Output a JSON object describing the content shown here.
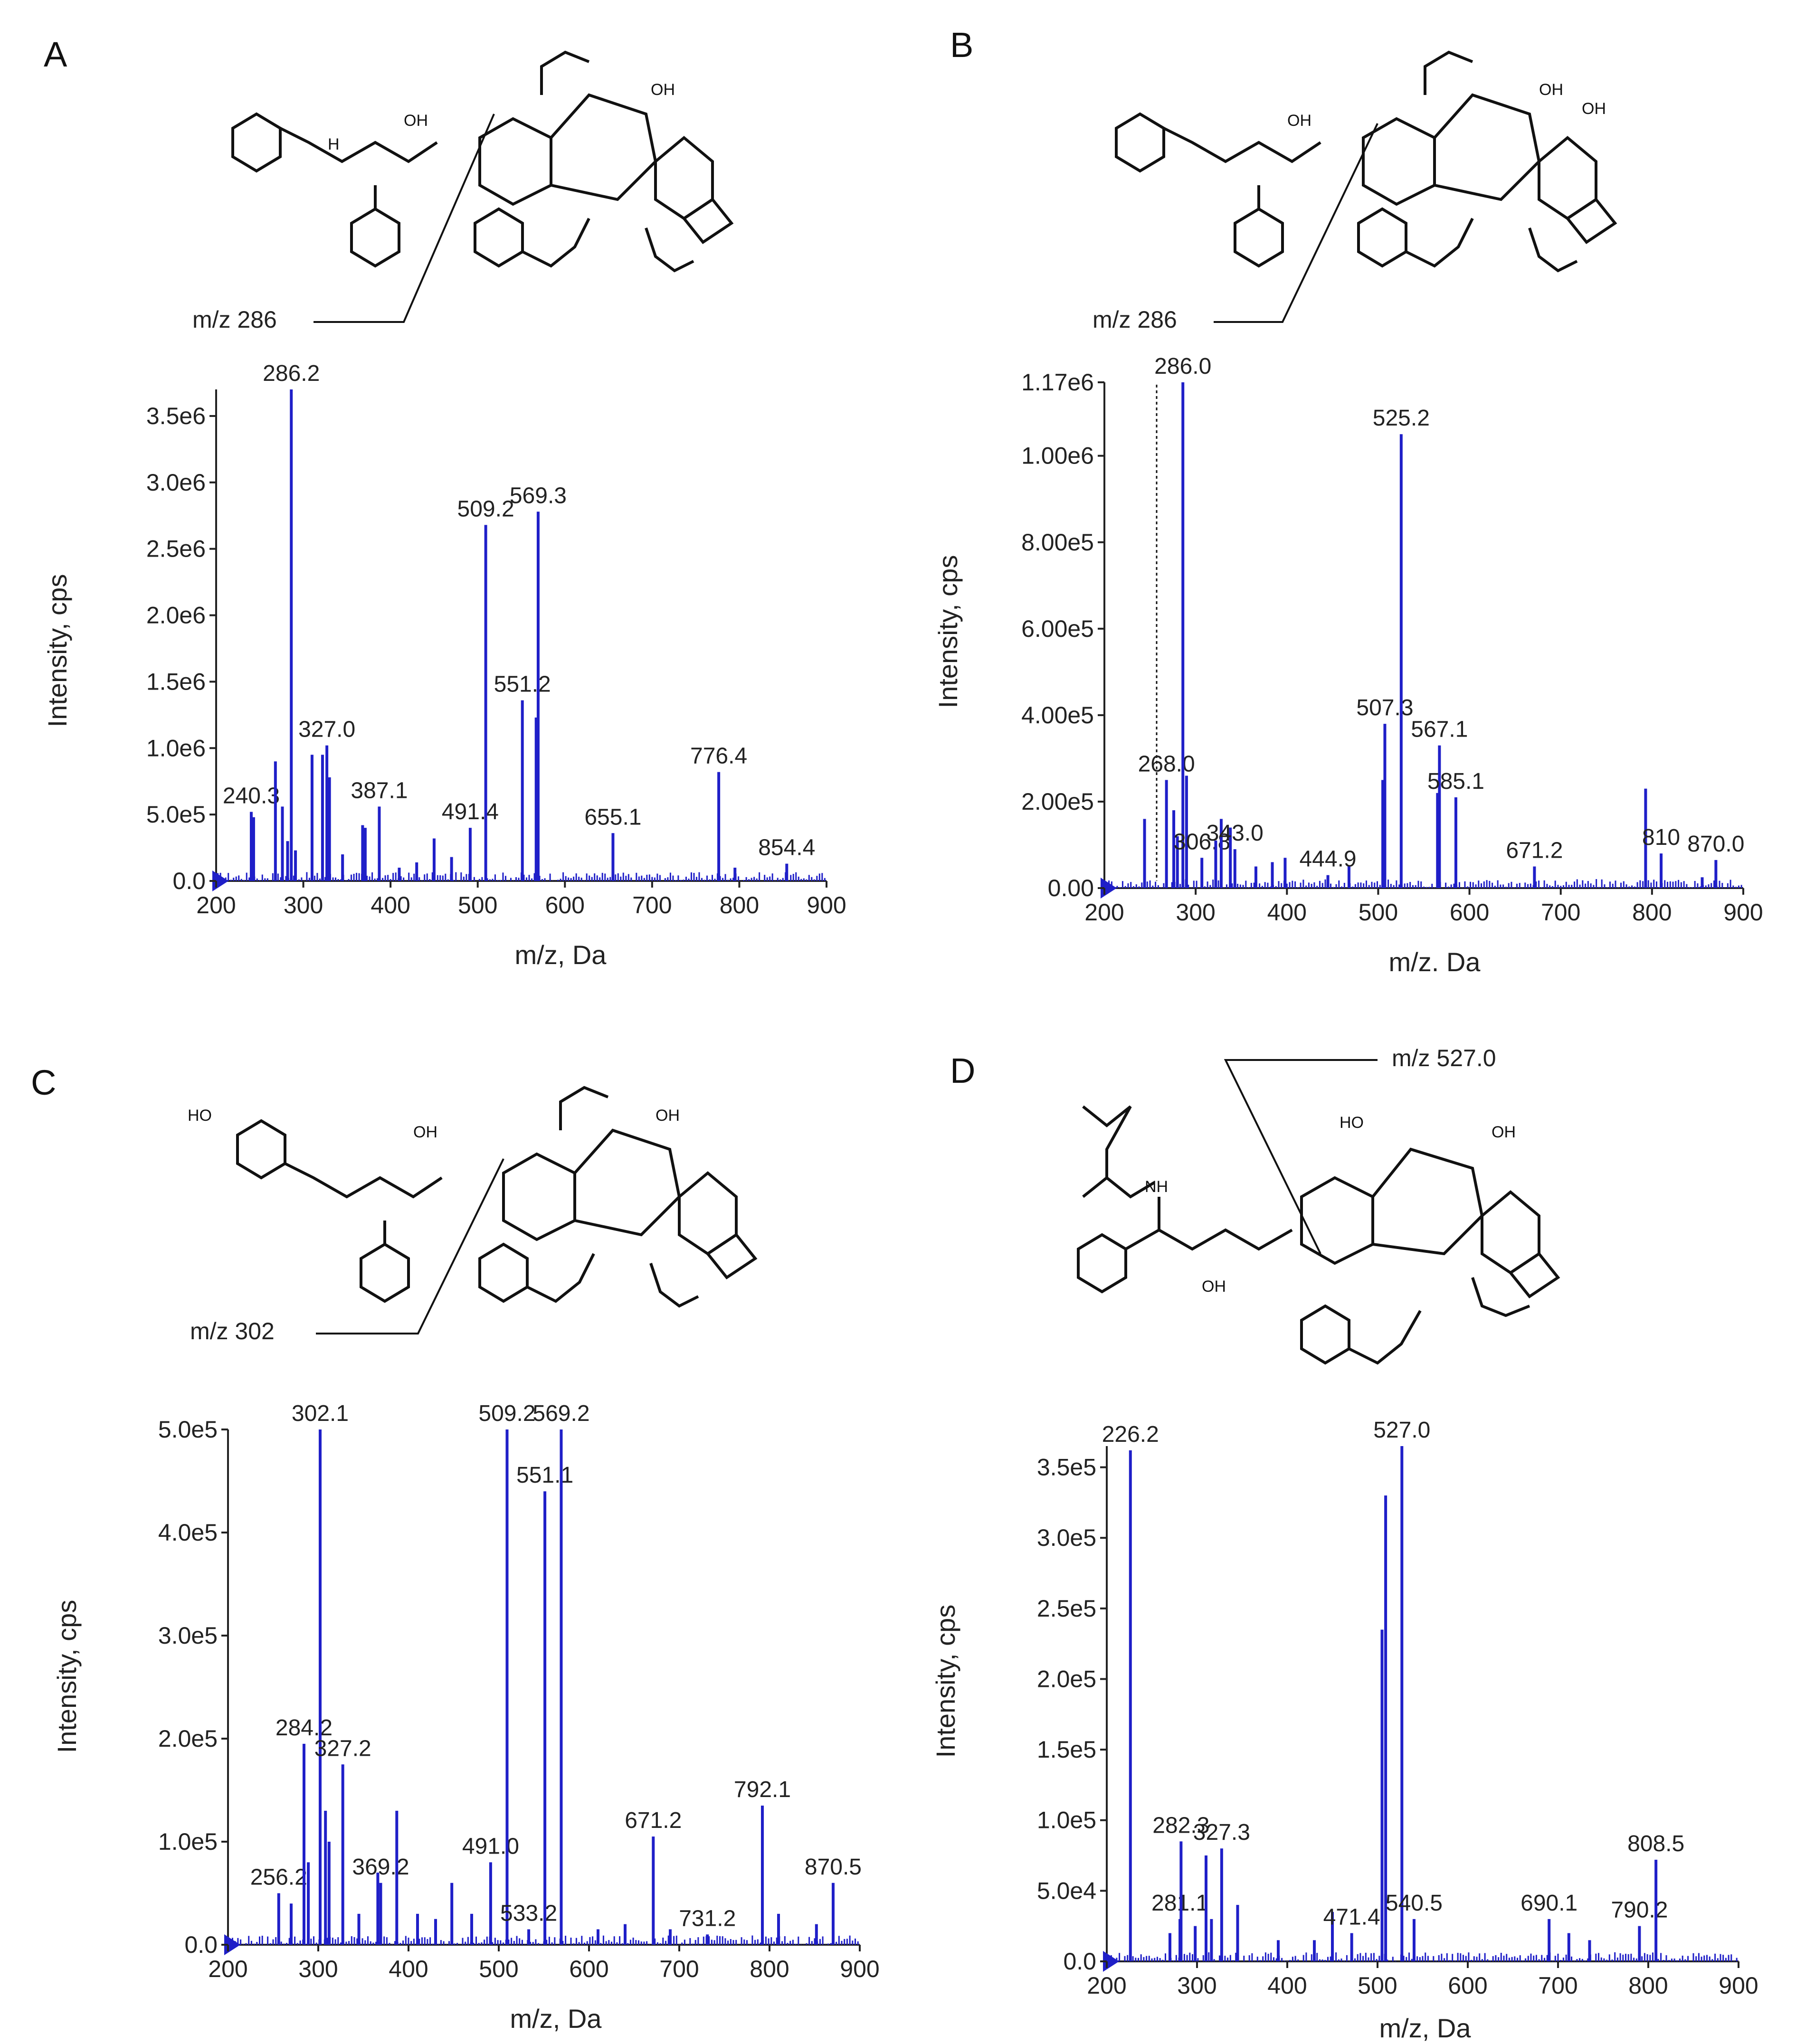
{
  "chart_data": [
    {
      "panel": "A",
      "type": "bar",
      "xlabel": "m/z, Da",
      "ylabel": "Intensity, cps",
      "xlim": [
        200,
        900
      ],
      "xticks": [
        200,
        300,
        400,
        500,
        600,
        700,
        800,
        900
      ],
      "xtick_labels": [
        "200",
        "300",
        "400",
        "500",
        "600",
        "700",
        "800",
        "900"
      ],
      "ylim": [
        0,
        3700000
      ],
      "yticks": [
        0,
        500000,
        1000000,
        1500000,
        2000000,
        2500000,
        3000000,
        3500000
      ],
      "ytick_labels": [
        "0.0",
        "5.0e5",
        "1.0e6",
        "1.5e6",
        "2.0e6",
        "2.5e6",
        "3.0e6",
        "3.5e6"
      ],
      "fragment_label": "m/z 286",
      "peaks": [
        {
          "mz": 240.3,
          "value": 520000,
          "label": "240.3"
        },
        {
          "mz": 243,
          "value": 480000
        },
        {
          "mz": 268,
          "value": 900000
        },
        {
          "mz": 276,
          "value": 560000
        },
        {
          "mz": 282,
          "value": 300000
        },
        {
          "mz": 286.2,
          "value": 3700000,
          "label": "286.2"
        },
        {
          "mz": 291,
          "value": 230000
        },
        {
          "mz": 310,
          "value": 950000
        },
        {
          "mz": 322,
          "value": 950000
        },
        {
          "mz": 327.0,
          "value": 1020000,
          "label": "327.0"
        },
        {
          "mz": 330,
          "value": 780000
        },
        {
          "mz": 345,
          "value": 200000
        },
        {
          "mz": 368,
          "value": 420000
        },
        {
          "mz": 371,
          "value": 400000
        },
        {
          "mz": 387.1,
          "value": 560000,
          "label": "387.1"
        },
        {
          "mz": 410,
          "value": 100000
        },
        {
          "mz": 430,
          "value": 140000
        },
        {
          "mz": 450,
          "value": 320000
        },
        {
          "mz": 470,
          "value": 180000
        },
        {
          "mz": 491.4,
          "value": 400000,
          "label": "491.4"
        },
        {
          "mz": 509.2,
          "value": 2680000,
          "label": "509.2"
        },
        {
          "mz": 551.2,
          "value": 1360000,
          "label": "551.2"
        },
        {
          "mz": 567,
          "value": 1230000
        },
        {
          "mz": 569.3,
          "value": 2780000,
          "label": "569.3"
        },
        {
          "mz": 655.1,
          "value": 360000,
          "label": "655.1"
        },
        {
          "mz": 776.4,
          "value": 820000,
          "label": "776.4"
        },
        {
          "mz": 795,
          "value": 100000
        },
        {
          "mz": 854.4,
          "value": 130000,
          "label": "854.4"
        }
      ]
    },
    {
      "panel": "B",
      "type": "bar",
      "xlabel": "m/z. Da",
      "ylabel": "Intensity, cps",
      "xlim": [
        200,
        900
      ],
      "xticks": [
        200,
        300,
        400,
        500,
        600,
        700,
        800,
        900
      ],
      "xtick_labels": [
        "200",
        "300",
        "400",
        "500",
        "600",
        "700",
        "800",
        "900"
      ],
      "ylim": [
        0,
        1170000
      ],
      "yticks": [
        0,
        200000,
        400000,
        600000,
        800000,
        1000000,
        1170000
      ],
      "ytick_labels": [
        "0.00",
        "2.00e5",
        "4.00e5",
        "6.00e5",
        "8.00e5",
        "1.00e6",
        "1.17e6"
      ],
      "fragment_label": "m/z 286",
      "peaks": [
        {
          "mz": 244,
          "value": 160000
        },
        {
          "mz": 268.0,
          "value": 250000,
          "label": "268.0"
        },
        {
          "mz": 276,
          "value": 180000
        },
        {
          "mz": 280,
          "value": 120000
        },
        {
          "mz": 286.0,
          "value": 1170000,
          "label": "286.0"
        },
        {
          "mz": 290,
          "value": 260000
        },
        {
          "mz": 306.8,
          "value": 70000,
          "label": "306.8"
        },
        {
          "mz": 322,
          "value": 110000
        },
        {
          "mz": 328,
          "value": 160000
        },
        {
          "mz": 338,
          "value": 140000
        },
        {
          "mz": 343.0,
          "value": 90000,
          "label": "343.0"
        },
        {
          "mz": 366,
          "value": 50000
        },
        {
          "mz": 384,
          "value": 60000
        },
        {
          "mz": 398,
          "value": 70000
        },
        {
          "mz": 444.9,
          "value": 30000,
          "label": "444.9"
        },
        {
          "mz": 468,
          "value": 50000
        },
        {
          "mz": 505,
          "value": 250000
        },
        {
          "mz": 507.3,
          "value": 380000,
          "label": "507.3"
        },
        {
          "mz": 525.2,
          "value": 1050000,
          "label": "525.2"
        },
        {
          "mz": 565,
          "value": 220000
        },
        {
          "mz": 567.1,
          "value": 330000,
          "label": "567.1"
        },
        {
          "mz": 585.1,
          "value": 210000,
          "label": "585.1"
        },
        {
          "mz": 671.2,
          "value": 50000,
          "label": "671.2"
        },
        {
          "mz": 793,
          "value": 230000
        },
        {
          "mz": 810,
          "value": 80000,
          "label": "810"
        },
        {
          "mz": 855,
          "value": 25000
        },
        {
          "mz": 870.0,
          "value": 65000,
          "label": "870.0"
        }
      ]
    },
    {
      "panel": "C",
      "type": "bar",
      "xlabel": "m/z, Da",
      "ylabel": "Intensity, cps",
      "xlim": [
        200,
        900
      ],
      "xticks": [
        200,
        300,
        400,
        500,
        600,
        700,
        800,
        900
      ],
      "xtick_labels": [
        "200",
        "300",
        "400",
        "500",
        "600",
        "700",
        "800",
        "900"
      ],
      "ylim": [
        0,
        500000
      ],
      "yticks": [
        0,
        100000,
        200000,
        300000,
        400000,
        500000
      ],
      "ytick_labels": [
        "0.0",
        "1.0e5",
        "2.0e5",
        "3.0e5",
        "4.0e5",
        "5.0e5"
      ],
      "fragment_label": "m/z  302",
      "peaks": [
        {
          "mz": 256.2,
          "value": 50000,
          "label": "256.2"
        },
        {
          "mz": 270,
          "value": 40000
        },
        {
          "mz": 284.2,
          "value": 195000,
          "label": "284.2"
        },
        {
          "mz": 289,
          "value": 80000
        },
        {
          "mz": 302.1,
          "value": 500000,
          "label": "302.1"
        },
        {
          "mz": 308,
          "value": 130000
        },
        {
          "mz": 312,
          "value": 100000
        },
        {
          "mz": 327.2,
          "value": 175000,
          "label": "327.2"
        },
        {
          "mz": 345,
          "value": 30000
        },
        {
          "mz": 366,
          "value": 70000
        },
        {
          "mz": 369.2,
          "value": 60000,
          "label": "369.2"
        },
        {
          "mz": 387,
          "value": 130000
        },
        {
          "mz": 410,
          "value": 30000
        },
        {
          "mz": 430,
          "value": 25000
        },
        {
          "mz": 448,
          "value": 60000
        },
        {
          "mz": 470,
          "value": 30000
        },
        {
          "mz": 491.0,
          "value": 80000,
          "label": "491.0"
        },
        {
          "mz": 509.2,
          "value": 500000,
          "label": "509.2"
        },
        {
          "mz": 533.2,
          "value": 15000,
          "label": "533.2"
        },
        {
          "mz": 551.1,
          "value": 440000,
          "label": "551.1"
        },
        {
          "mz": 569.2,
          "value": 500000,
          "label": "569.2"
        },
        {
          "mz": 610,
          "value": 15000
        },
        {
          "mz": 640,
          "value": 20000
        },
        {
          "mz": 671.2,
          "value": 105000,
          "label": "671.2"
        },
        {
          "mz": 690,
          "value": 15000
        },
        {
          "mz": 731.2,
          "value": 10000,
          "label": "731.2"
        },
        {
          "mz": 792.1,
          "value": 135000,
          "label": "792.1"
        },
        {
          "mz": 810,
          "value": 30000
        },
        {
          "mz": 852,
          "value": 20000
        },
        {
          "mz": 870.5,
          "value": 60000,
          "label": "870.5"
        }
      ]
    },
    {
      "panel": "D",
      "type": "bar",
      "xlabel": "m/z, Da",
      "ylabel": "Intensity, cps",
      "xlim": [
        200,
        900
      ],
      "xticks": [
        200,
        300,
        400,
        500,
        600,
        700,
        800,
        900
      ],
      "xtick_labels": [
        "200",
        "300",
        "400",
        "500",
        "600",
        "700",
        "800",
        "900"
      ],
      "ylim": [
        0,
        365000
      ],
      "yticks": [
        0,
        50000,
        100000,
        150000,
        200000,
        250000,
        300000,
        350000
      ],
      "ytick_labels": [
        "0.0",
        "5.0e4",
        "1.0e5",
        "1.5e5",
        "2.0e5",
        "2.5e5",
        "3.0e5",
        "3.5e5"
      ],
      "fragment_label": "m/z 527.0",
      "peaks": [
        {
          "mz": 226.2,
          "value": 362000,
          "label": "226.2"
        },
        {
          "mz": 270,
          "value": 20000
        },
        {
          "mz": 281.1,
          "value": 30000,
          "label": "281.1"
        },
        {
          "mz": 282.3,
          "value": 85000,
          "label": "282.3"
        },
        {
          "mz": 298,
          "value": 25000
        },
        {
          "mz": 310,
          "value": 75000
        },
        {
          "mz": 316,
          "value": 30000
        },
        {
          "mz": 327.3,
          "value": 80000,
          "label": "327.3"
        },
        {
          "mz": 345,
          "value": 40000
        },
        {
          "mz": 390,
          "value": 15000
        },
        {
          "mz": 430,
          "value": 15000
        },
        {
          "mz": 450,
          "value": 35000
        },
        {
          "mz": 471.4,
          "value": 20000,
          "label": "471.4"
        },
        {
          "mz": 505,
          "value": 235000
        },
        {
          "mz": 509,
          "value": 330000
        },
        {
          "mz": 527.0,
          "value": 365000,
          "label": "527.0"
        },
        {
          "mz": 540.5,
          "value": 30000,
          "label": "540.5"
        },
        {
          "mz": 690.1,
          "value": 30000,
          "label": "690.1"
        },
        {
          "mz": 712,
          "value": 20000
        },
        {
          "mz": 735,
          "value": 15000
        },
        {
          "mz": 790.2,
          "value": 25000,
          "label": "790.2"
        },
        {
          "mz": 808.5,
          "value": 72000,
          "label": "808.5"
        }
      ]
    }
  ]
}
